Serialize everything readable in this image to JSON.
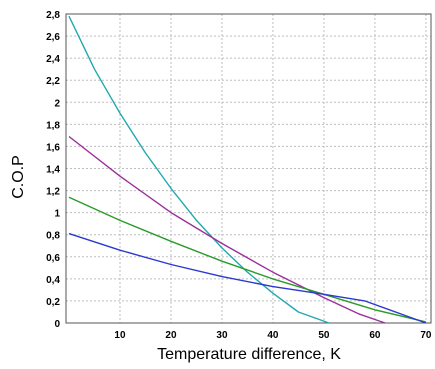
{
  "chart_data": {
    "type": "line",
    "title": "",
    "xlabel": "Temperature difference, K",
    "ylabel": "C.O.P",
    "xlim": [
      0,
      71
    ],
    "ylim": [
      0,
      2.8
    ],
    "x_ticks": [
      "10",
      "20",
      "30",
      "40",
      "50",
      "60",
      "70"
    ],
    "y_ticks": [
      "0",
      "0,2",
      "0,4",
      "0,6",
      "0,8",
      "1",
      "1,2",
      "1,4",
      "1,6",
      "1,8",
      "2",
      "2,2",
      "2,4",
      "2,6",
      "2,8"
    ],
    "grid": true,
    "legend": "none",
    "series": [
      {
        "color": "#22a8b0",
        "points": [
          [
            0,
            2.78
          ],
          [
            5,
            2.3
          ],
          [
            10,
            1.9
          ],
          [
            15,
            1.54
          ],
          [
            20,
            1.22
          ],
          [
            25,
            0.93
          ],
          [
            30,
            0.68
          ],
          [
            35,
            0.46
          ],
          [
            40,
            0.27
          ],
          [
            45,
            0.1
          ],
          [
            51,
            0.0
          ]
        ]
      },
      {
        "color": "#9b2f9b",
        "points": [
          [
            0,
            1.69
          ],
          [
            10,
            1.33
          ],
          [
            20,
            1.0
          ],
          [
            30,
            0.72
          ],
          [
            40,
            0.46
          ],
          [
            50,
            0.23
          ],
          [
            57,
            0.08
          ],
          [
            62,
            0.0
          ]
        ]
      },
      {
        "color": "#2a9a2a",
        "points": [
          [
            0,
            1.14
          ],
          [
            10,
            0.93
          ],
          [
            20,
            0.74
          ],
          [
            30,
            0.56
          ],
          [
            40,
            0.4
          ],
          [
            50,
            0.26
          ],
          [
            60,
            0.12
          ],
          [
            70,
            0.01
          ]
        ]
      },
      {
        "color": "#2a3ad0",
        "points": [
          [
            0,
            0.81
          ],
          [
            10,
            0.66
          ],
          [
            20,
            0.53
          ],
          [
            30,
            0.42
          ],
          [
            40,
            0.33
          ],
          [
            50,
            0.26
          ],
          [
            58,
            0.2
          ],
          [
            70,
            0.0
          ]
        ]
      }
    ]
  }
}
